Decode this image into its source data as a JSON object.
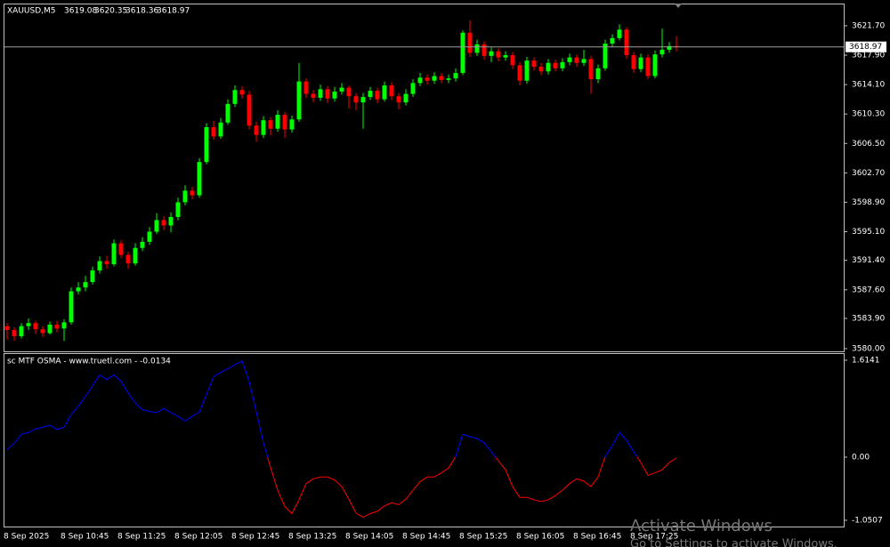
{
  "chart_data": [
    {
      "type": "candlestick",
      "title": "XAUUSD,M5",
      "categories": [
        "8 Sep 2025",
        null,
        null,
        null,
        null,
        null,
        null,
        null,
        "8 Sep 10:45",
        null,
        null,
        null,
        null,
        null,
        null,
        null,
        "8 Sep 11:25",
        null,
        null,
        null,
        null,
        null,
        null,
        null,
        "8 Sep 12:05",
        null,
        null,
        null,
        null,
        null,
        null,
        null,
        "8 Sep 12:45",
        null,
        null,
        null,
        null,
        null,
        null,
        null,
        "8 Sep 13:25",
        null,
        null,
        null,
        null,
        null,
        null,
        null,
        "8 Sep 14:05",
        null,
        null,
        null,
        null,
        null,
        null,
        null,
        "8 Sep 14:45",
        null,
        null,
        null,
        null,
        null,
        null,
        null,
        "8 Sep 15:25",
        null,
        null,
        null,
        null,
        null,
        null,
        null,
        "8 Sep 16:05",
        null,
        null,
        null,
        null,
        null,
        null,
        null,
        "8 Sep 16:45",
        null,
        null,
        null,
        null,
        null,
        null,
        null,
        "8 Sep 17:25",
        null,
        null,
        null,
        null,
        null,
        null
      ],
      "open": [
        3582.9,
        3582.4,
        3581.6,
        3582.9,
        3583.3,
        3582.5,
        3582.0,
        3583.1,
        3582.6,
        3583.4,
        3587.4,
        3587.9,
        3588.6,
        3590.1,
        3591.3,
        3590.9,
        3593.6,
        3592.1,
        3591.0,
        3593.0,
        3593.8,
        3595.1,
        3596.6,
        3595.9,
        3597.0,
        3598.9,
        3600.4,
        3599.8,
        3604.1,
        3608.6,
        3607.4,
        3609.2,
        3611.6,
        3613.4,
        3612.8,
        3608.8,
        3607.6,
        3609.5,
        3608.4,
        3610.2,
        3608.3,
        3609.6,
        3614.5,
        3612.9,
        3612.4,
        3613.5,
        3612.3,
        3613.2,
        3613.7,
        3612.6,
        3611.8,
        3612.5,
        3613.3,
        3612.2,
        3614.0,
        3612.6,
        3611.8,
        3612.9,
        3614.3,
        3615.0,
        3614.6,
        3615.2,
        3614.7,
        3614.9,
        3615.6,
        3620.8,
        3618.2,
        3619.3,
        3617.8,
        3618.4,
        3617.6,
        3617.9,
        3616.6,
        3614.6,
        3617.2,
        3616.4,
        3615.8,
        3616.9,
        3616.2,
        3617.0,
        3617.6,
        3616.9,
        3617.4,
        3614.8,
        3616.2,
        3619.4,
        3620.1,
        3621.2,
        3617.9,
        3616.1,
        3617.6,
        3615.2,
        3618.0,
        3618.6,
        3619.08
      ],
      "high": [
        3583.3,
        3582.8,
        3583.3,
        3583.9,
        3583.6,
        3582.9,
        3583.5,
        3583.6,
        3583.8,
        3587.9,
        3588.6,
        3589.4,
        3590.6,
        3591.9,
        3592.0,
        3594.1,
        3594.0,
        3592.5,
        3593.6,
        3594.4,
        3595.7,
        3597.5,
        3597.1,
        3597.6,
        3599.5,
        3601.1,
        3600.9,
        3604.6,
        3609.1,
        3609.4,
        3609.8,
        3612.2,
        3614.0,
        3613.9,
        3613.3,
        3609.3,
        3610.0,
        3609.9,
        3610.8,
        3610.6,
        3610.1,
        3616.9,
        3614.9,
        3613.4,
        3614.1,
        3613.9,
        3613.8,
        3614.3,
        3614.0,
        3613.0,
        3613.0,
        3613.8,
        3613.7,
        3614.5,
        3614.4,
        3613.0,
        3613.5,
        3614.8,
        3615.6,
        3615.4,
        3615.7,
        3615.6,
        3615.4,
        3616.2,
        3621.1,
        3622.4,
        3619.9,
        3619.7,
        3618.9,
        3618.8,
        3618.4,
        3618.3,
        3617.0,
        3617.7,
        3617.6,
        3616.9,
        3617.4,
        3617.3,
        3617.5,
        3618.1,
        3618.0,
        3618.6,
        3617.8,
        3616.7,
        3619.9,
        3620.6,
        3621.9,
        3621.5,
        3618.3,
        3618.1,
        3618.0,
        3618.5,
        3621.3,
        3619.6,
        3620.35
      ],
      "low": [
        3581.2,
        3581.0,
        3581.3,
        3582.4,
        3581.9,
        3581.5,
        3581.8,
        3582.1,
        3581.0,
        3583.1,
        3587.0,
        3587.4,
        3588.3,
        3589.7,
        3590.3,
        3590.6,
        3591.7,
        3590.3,
        3590.7,
        3592.6,
        3593.4,
        3594.8,
        3595.3,
        3595.0,
        3596.6,
        3598.5,
        3599.3,
        3599.5,
        3603.8,
        3607.0,
        3607.1,
        3608.9,
        3611.2,
        3612.3,
        3608.3,
        3606.7,
        3607.2,
        3607.5,
        3608.0,
        3607.2,
        3607.9,
        3609.3,
        3612.4,
        3611.8,
        3612.0,
        3611.7,
        3611.9,
        3612.8,
        3611.0,
        3610.8,
        3608.4,
        3612.1,
        3611.7,
        3611.9,
        3612.1,
        3610.9,
        3611.4,
        3612.5,
        3613.9,
        3614.1,
        3614.2,
        3614.3,
        3614.3,
        3614.5,
        3615.3,
        3617.7,
        3617.8,
        3617.3,
        3617.0,
        3617.1,
        3617.2,
        3616.1,
        3614.0,
        3614.2,
        3615.9,
        3615.3,
        3615.4,
        3615.8,
        3615.8,
        3616.6,
        3616.4,
        3616.5,
        3612.9,
        3614.3,
        3615.9,
        3619.0,
        3619.8,
        3617.4,
        3615.6,
        3615.7,
        3614.8,
        3614.9,
        3617.6,
        3618.2,
        3618.36
      ],
      "close": [
        3582.4,
        3581.6,
        3582.9,
        3583.3,
        3582.5,
        3582.0,
        3583.1,
        3582.6,
        3583.4,
        3587.4,
        3587.9,
        3588.6,
        3590.1,
        3591.3,
        3590.9,
        3593.6,
        3592.1,
        3591.0,
        3593.0,
        3593.8,
        3595.1,
        3596.6,
        3595.9,
        3597.0,
        3598.9,
        3600.4,
        3599.8,
        3604.1,
        3608.6,
        3607.4,
        3609.2,
        3611.6,
        3613.4,
        3612.8,
        3608.8,
        3607.6,
        3609.5,
        3608.4,
        3610.2,
        3608.3,
        3609.6,
        3614.5,
        3612.9,
        3612.4,
        3613.5,
        3612.3,
        3613.2,
        3613.7,
        3612.6,
        3611.8,
        3612.5,
        3613.3,
        3612.2,
        3614.0,
        3612.6,
        3611.8,
        3612.9,
        3614.3,
        3615.0,
        3614.6,
        3615.2,
        3614.7,
        3614.9,
        3615.6,
        3620.8,
        3618.2,
        3619.3,
        3617.8,
        3618.4,
        3617.6,
        3617.9,
        3616.6,
        3614.6,
        3617.2,
        3616.4,
        3615.8,
        3616.9,
        3616.2,
        3617.0,
        3617.6,
        3616.9,
        3617.4,
        3614.8,
        3616.2,
        3619.4,
        3620.1,
        3621.2,
        3617.9,
        3616.1,
        3617.6,
        3615.2,
        3618.0,
        3618.6,
        3619.08,
        3618.97
      ],
      "up_color": "#00ff00",
      "down_color": "#ff0000",
      "ylim": [
        3579.65,
        3624.45
      ],
      "yticks": [
        {
          "value": 3580,
          "label": "3580.00"
        },
        {
          "value": 3583.9,
          "label": "3583.90"
        },
        {
          "value": 3587.6,
          "label": "3587.60"
        },
        {
          "value": 3591.4,
          "label": "3591.40"
        },
        {
          "value": 3595.1,
          "label": "3595.10"
        },
        {
          "value": 3598.9,
          "label": "3598.90"
        },
        {
          "value": 3602.7,
          "label": "3602.70"
        },
        {
          "value": 3606.5,
          "label": "3606.50"
        },
        {
          "value": 3610.3,
          "label": "3610.30"
        },
        {
          "value": 3614.1,
          "label": "3614.10"
        },
        {
          "value": 3617.9,
          "label": "3617.90"
        },
        {
          "value": 3621.7,
          "label": "3621.70"
        }
      ]
    },
    {
      "type": "line",
      "title": "sc MTF OSMA - www.truetl.com - -0.0134",
      "values": [
        0.13,
        0.23,
        0.38,
        0.41,
        0.47,
        0.5,
        0.53,
        0.46,
        0.5,
        0.71,
        0.85,
        1.01,
        1.19,
        1.37,
        1.29,
        1.37,
        1.26,
        1.07,
        0.9,
        0.79,
        0.76,
        0.74,
        0.81,
        0.74,
        0.68,
        0.6,
        0.68,
        0.75,
        1.04,
        1.34,
        1.41,
        1.47,
        1.54,
        1.6,
        1.26,
        0.75,
        0.24,
        -0.17,
        -0.55,
        -0.82,
        -0.94,
        -0.71,
        -0.44,
        -0.36,
        -0.33,
        -0.33,
        -0.38,
        -0.49,
        -0.7,
        -0.93,
        -1.0,
        -0.94,
        -0.9,
        -0.81,
        -0.76,
        -0.79,
        -0.7,
        -0.55,
        -0.41,
        -0.33,
        -0.33,
        -0.26,
        -0.18,
        0.01,
        0.38,
        0.34,
        0.31,
        0.24,
        0.09,
        -0.06,
        -0.21,
        -0.49,
        -0.67,
        -0.67,
        -0.71,
        -0.74,
        -0.71,
        -0.64,
        -0.55,
        -0.44,
        -0.36,
        -0.4,
        -0.49,
        -0.33,
        0.01,
        0.19,
        0.41,
        0.28,
        0.09,
        -0.09,
        -0.3,
        -0.26,
        -0.21,
        -0.09,
        -0.0134
      ],
      "color": "#0000ff",
      "negative_color": "#ff0000",
      "ylim": [
        -1.155,
        1.717
      ],
      "yticks": [
        1.6141,
        {
          "value": 0,
          "label": "0.00"
        },
        -1.0507
      ]
    }
  ],
  "watermark": {
    "line1": "Activate Windows",
    "line2": "Go to Settings to activate Windows."
  }
}
